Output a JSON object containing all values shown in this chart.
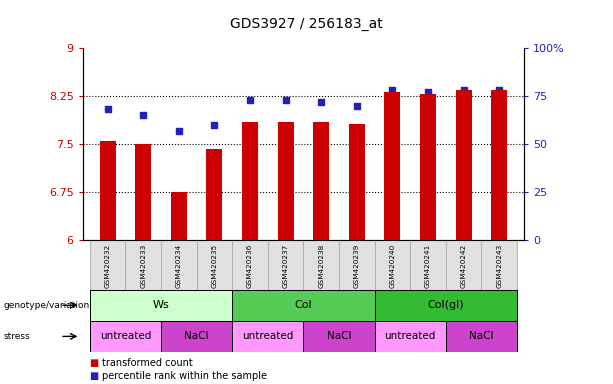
{
  "title": "GDS3927 / 256183_at",
  "samples": [
    "GSM420232",
    "GSM420233",
    "GSM420234",
    "GSM420235",
    "GSM420236",
    "GSM420237",
    "GSM420238",
    "GSM420239",
    "GSM420240",
    "GSM420241",
    "GSM420242",
    "GSM420243"
  ],
  "bar_values": [
    7.55,
    7.5,
    6.75,
    7.42,
    7.85,
    7.85,
    7.85,
    7.82,
    8.32,
    8.28,
    8.35,
    8.35
  ],
  "dot_values": [
    68,
    65,
    57,
    60,
    73,
    73,
    72,
    70,
    78,
    77,
    78,
    78
  ],
  "ylim_left": [
    6,
    9
  ],
  "ylim_right": [
    0,
    100
  ],
  "yticks_left": [
    6,
    6.75,
    7.5,
    8.25,
    9
  ],
  "ytick_labels_left": [
    "6",
    "6.75",
    "7.5",
    "8.25",
    "9"
  ],
  "yticks_right": [
    0,
    25,
    50,
    75,
    100
  ],
  "ytick_labels_right": [
    "0",
    "25",
    "50",
    "75",
    "100%"
  ],
  "hlines": [
    6.75,
    7.5,
    8.25
  ],
  "bar_color": "#CC0000",
  "dot_color": "#2222BB",
  "bar_width": 0.45,
  "genotype_groups": [
    {
      "label": "Ws",
      "start": 0,
      "end": 3,
      "color": "#ccffcc"
    },
    {
      "label": "Col",
      "start": 4,
      "end": 7,
      "color": "#55cc55"
    },
    {
      "label": "Col(gl)",
      "start": 8,
      "end": 11,
      "color": "#33bb33"
    }
  ],
  "stress_groups": [
    {
      "label": "untreated",
      "start": 0,
      "end": 1,
      "color": "#ff99ff"
    },
    {
      "label": "NaCl",
      "start": 2,
      "end": 3,
      "color": "#cc44cc"
    },
    {
      "label": "untreated",
      "start": 4,
      "end": 5,
      "color": "#ff99ff"
    },
    {
      "label": "NaCl",
      "start": 6,
      "end": 7,
      "color": "#cc44cc"
    },
    {
      "label": "untreated",
      "start": 8,
      "end": 9,
      "color": "#ff99ff"
    },
    {
      "label": "NaCl",
      "start": 10,
      "end": 11,
      "color": "#cc44cc"
    }
  ],
  "legend_items": [
    {
      "label": "transformed count",
      "color": "#CC0000"
    },
    {
      "label": "percentile rank within the sample",
      "color": "#2222BB"
    }
  ],
  "tick_color_left": "#CC0000",
  "tick_color_right": "#2222BB",
  "background_color": "#ffffff",
  "sample_box_color": "#e0e0e0",
  "sample_box_edge": "#aaaaaa"
}
